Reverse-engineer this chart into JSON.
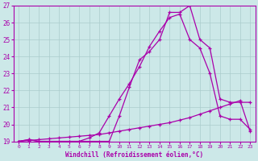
{
  "xlabel": "Windchill (Refroidissement éolien,°C)",
  "bg_color": "#cce8e8",
  "grid_color": "#aacccc",
  "line_color": "#aa00aa",
  "xlim": [
    -0.5,
    23.5
  ],
  "ylim": [
    19,
    27
  ],
  "xticks": [
    0,
    1,
    2,
    3,
    4,
    5,
    6,
    7,
    8,
    9,
    10,
    11,
    12,
    13,
    14,
    15,
    16,
    17,
    18,
    19,
    20,
    21,
    22,
    23
  ],
  "yticks": [
    19,
    20,
    21,
    22,
    23,
    24,
    25,
    26,
    27
  ],
  "line1_x": [
    0,
    1,
    2,
    3,
    4,
    5,
    6,
    7,
    8,
    9,
    10,
    11,
    12,
    13,
    14,
    15,
    16,
    17,
    18,
    19,
    20,
    21,
    22,
    23
  ],
  "line1_y": [
    19,
    19.1,
    19,
    19,
    19,
    19,
    19,
    19,
    19,
    19,
    20.5,
    22.2,
    23.8,
    24.3,
    25.0,
    26.6,
    26.6,
    27.0,
    25.0,
    24.5,
    21.5,
    21.3,
    21.3,
    21.3
  ],
  "line2_x": [
    0,
    1,
    2,
    3,
    4,
    5,
    6,
    7,
    8,
    9,
    10,
    11,
    12,
    13,
    14,
    15,
    16,
    17,
    18,
    19,
    20,
    21,
    22,
    23
  ],
  "line2_y": [
    19,
    19.1,
    19,
    19,
    19,
    19,
    19,
    19.2,
    19.5,
    20.5,
    21.5,
    22.4,
    23.4,
    24.6,
    25.5,
    26.3,
    26.5,
    25.0,
    24.5,
    23.0,
    20.5,
    20.3,
    20.3,
    19.7
  ],
  "line3_x": [
    0,
    1,
    2,
    3,
    4,
    5,
    6,
    7,
    8,
    9,
    10,
    11,
    12,
    13,
    14,
    15,
    16,
    17,
    18,
    19,
    20,
    21,
    22,
    23
  ],
  "line3_y": [
    19,
    19.05,
    19.1,
    19.15,
    19.2,
    19.25,
    19.3,
    19.35,
    19.4,
    19.5,
    19.6,
    19.7,
    19.8,
    19.9,
    20.0,
    20.1,
    20.25,
    20.4,
    20.6,
    20.8,
    21.0,
    21.2,
    21.4,
    19.6
  ]
}
